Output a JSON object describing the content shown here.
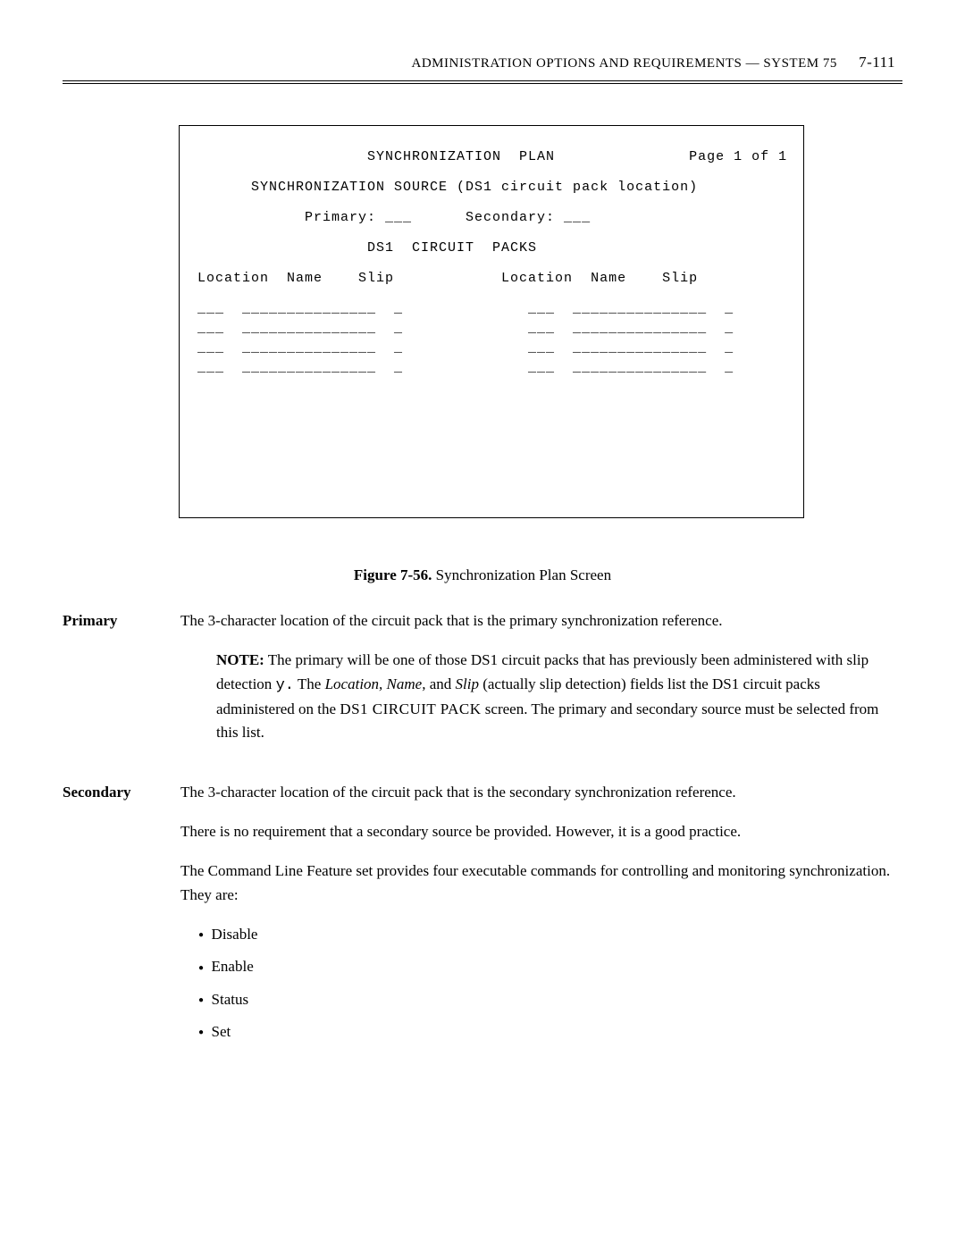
{
  "header": {
    "title": "ADMINISTRATION OPTIONS AND REQUIREMENTS — SYSTEM 75",
    "pagenum": "7-111"
  },
  "terminal": {
    "title_line": "                   SYNCHRONIZATION  PLAN               Page 1 of 1",
    "source_line": "      SYNCHRONIZATION SOURCE (DS1 circuit pack location)",
    "primary_secondary": "            Primary: ___      Secondary: ___",
    "ds1_line": "                   DS1  CIRCUIT  PACKS",
    "col_headers": "Location  Name    Slip            Location  Name    Slip",
    "rows": [
      "___  _______________  _              ___  _______________  _",
      "___  _______________  _              ___  _______________  _",
      "___  _______________  _              ___  _______________  _",
      "___  _______________  _              ___  _______________  _"
    ]
  },
  "caption": {
    "label": "Figure 7-56.",
    "text": " Synchronization Plan Screen"
  },
  "primary": {
    "term": "Primary",
    "para1": "The 3-character location of the circuit pack that is the primary synchronization reference.",
    "note_label": "NOTE:",
    "note_part1": " The primary will be one of those DS1 circuit packs that has previously been administered with slip detection ",
    "note_y": "y.",
    "note_part2": " The ",
    "note_loc": "Location, Name,",
    "note_part3": " and ",
    "note_slip": "Slip",
    "note_part4": " (actually slip detection) fields list the DS1 circuit packs administered on the ",
    "note_ds1": "DS1 CIRCUIT PACK",
    "note_part5": " screen. The primary and secondary source must be selected from this list."
  },
  "secondary": {
    "term": "Secondary",
    "para1": "The 3-character location of the circuit pack that is the secondary synchronization reference.",
    "para2": "There is no requirement that a secondary source be provided. However, it is a good practice.",
    "para3": "The Command Line Feature set provides four executable commands for controlling and monitoring synchronization. They are:",
    "bullets": [
      "Disable",
      "Enable",
      "Status",
      "Set"
    ]
  }
}
